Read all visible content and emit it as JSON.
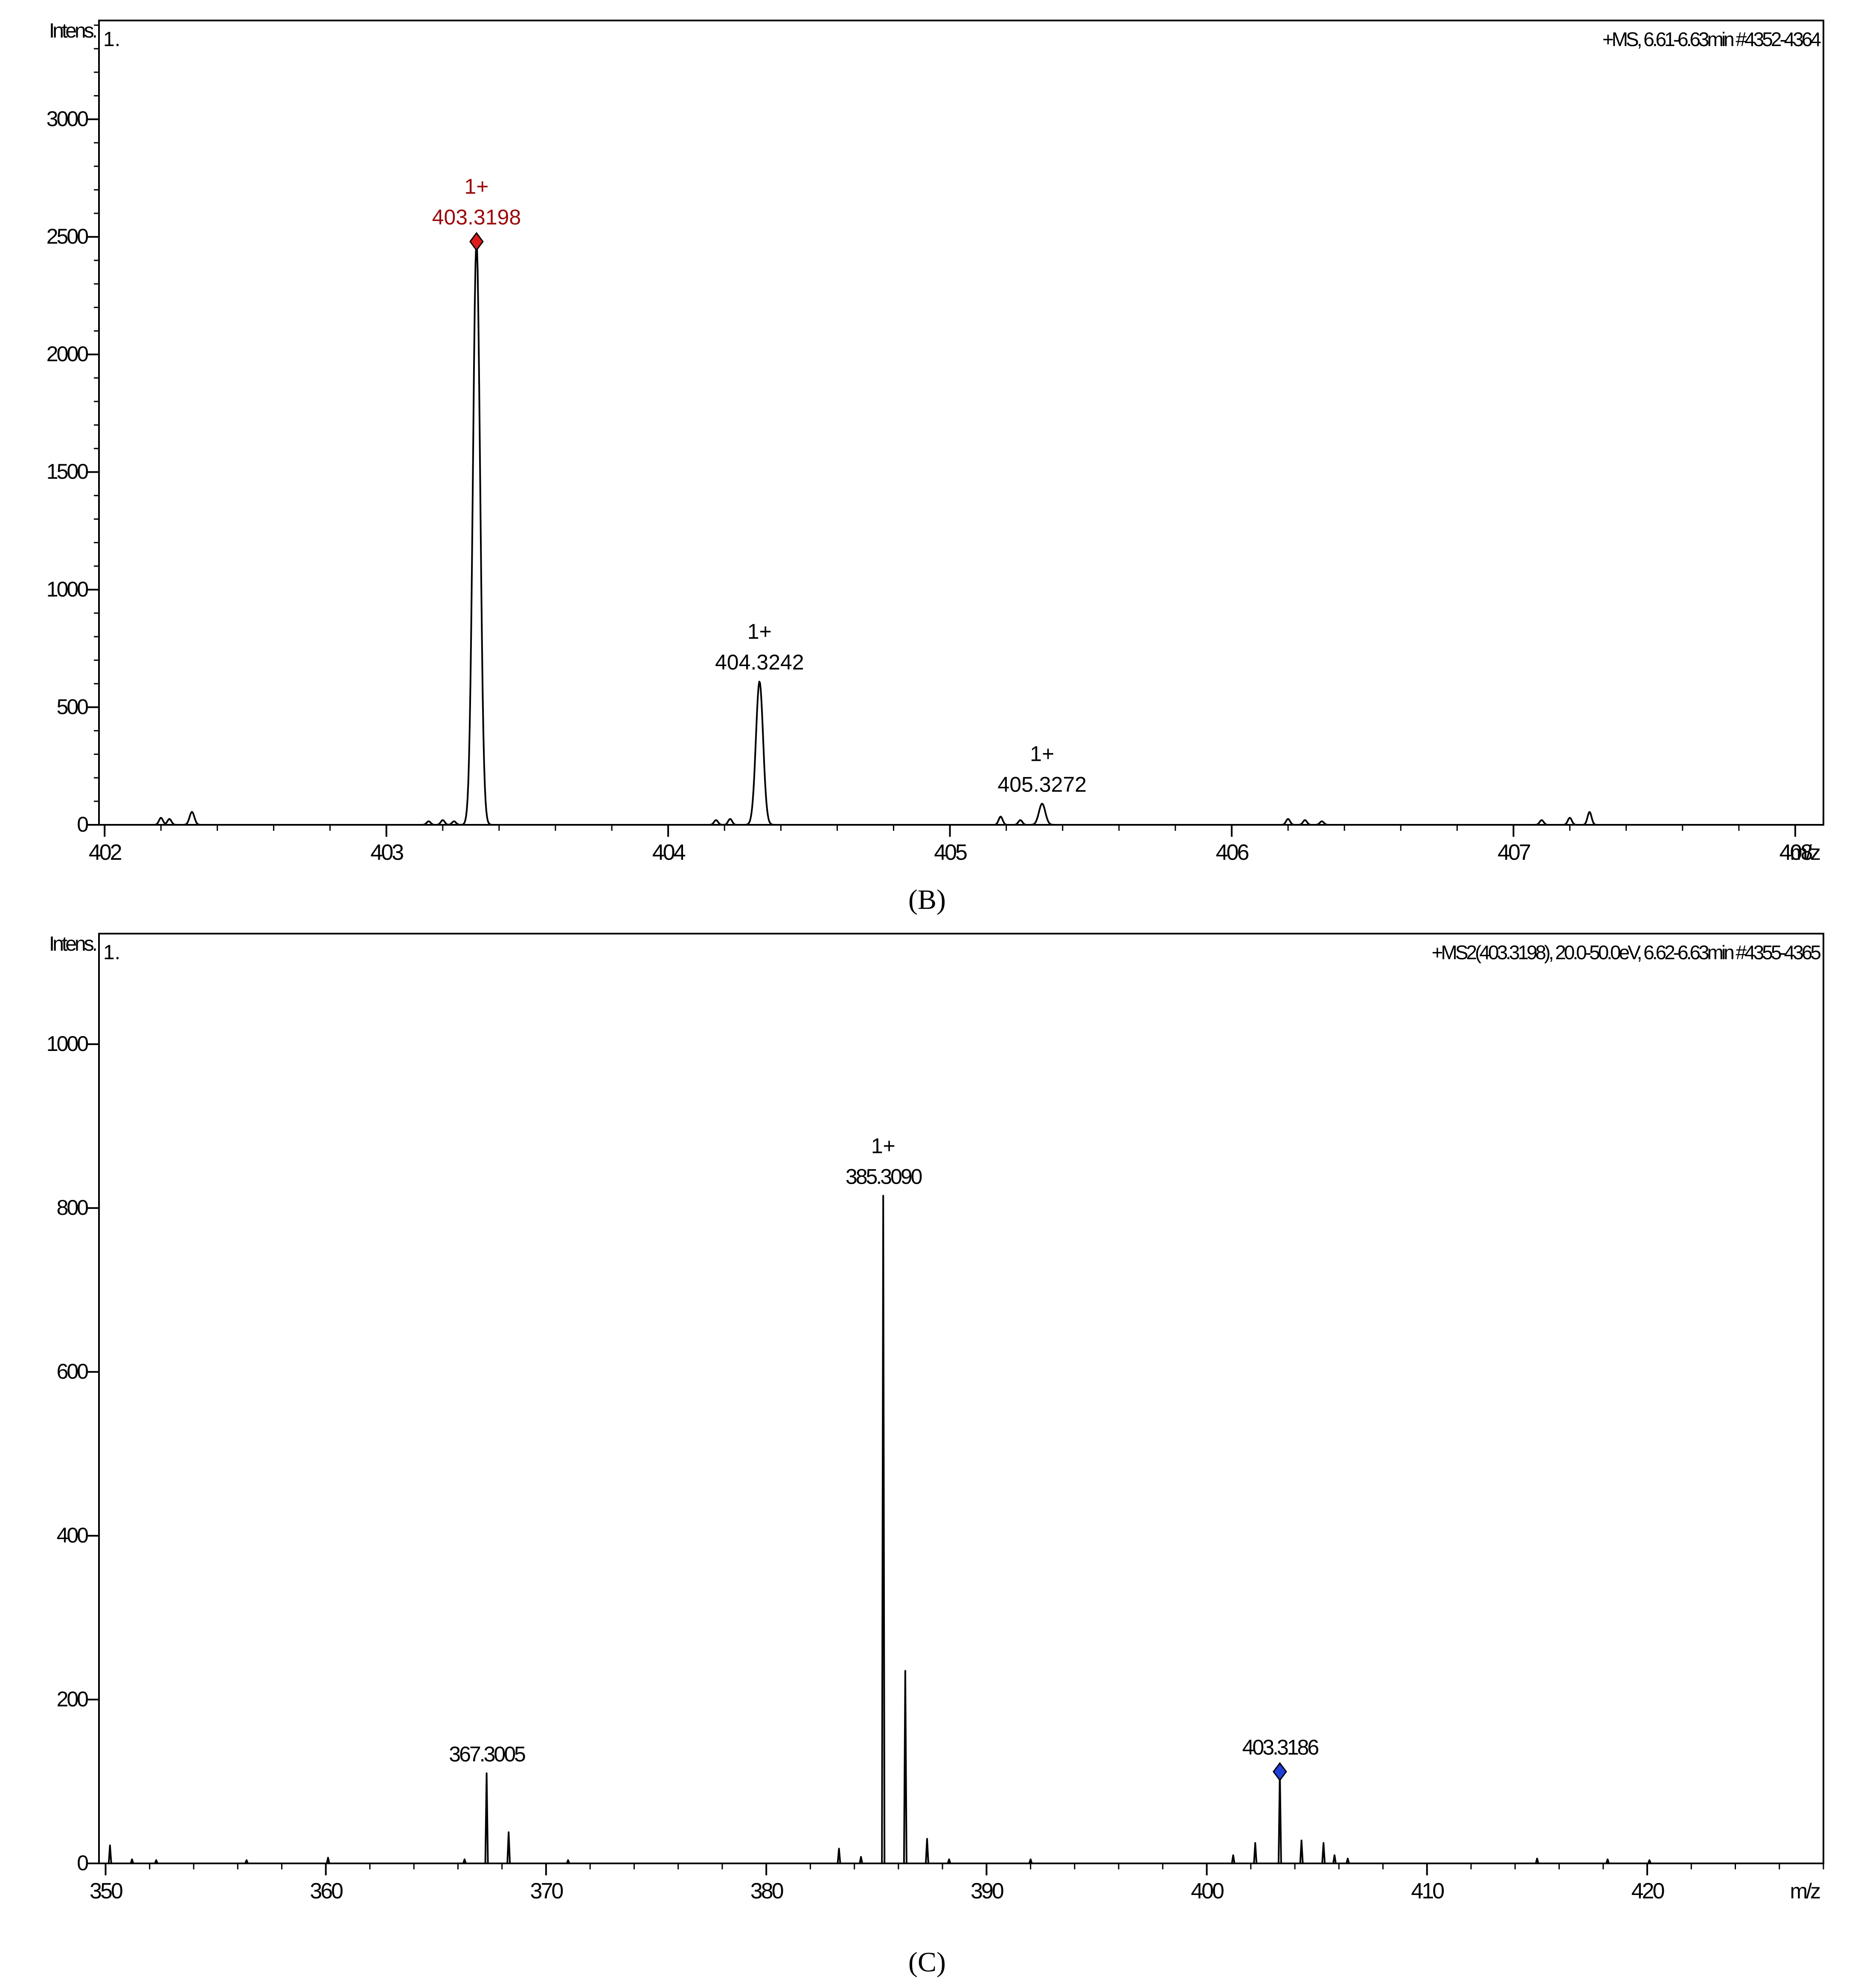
{
  "colors": {
    "line": "#000000",
    "red_marker": "#e01b1b",
    "red_text": "#9b0a0a",
    "blue_marker": "#1f3fd8"
  },
  "chart_data": [
    {
      "id": "B",
      "type": "line",
      "title": "",
      "panel_number": "1.",
      "header_info": "+MS, 6.61-6.63min #4352-4364",
      "ylabel": "Intens.",
      "xunit": "m/z",
      "xlim": [
        401.98,
        408.1
      ],
      "ylim": [
        0,
        3420
      ],
      "xticks": [
        402,
        403,
        404,
        405,
        406,
        407,
        408
      ],
      "xtick_labels": [
        "402",
        "403",
        "404",
        "405",
        "406",
        "407",
        "408"
      ],
      "yticks": [
        0,
        500,
        1000,
        1500,
        2000,
        2500,
        3000
      ],
      "ytick_labels": [
        "0",
        "500",
        "1000",
        "1500",
        "2000",
        "2500",
        "3000"
      ],
      "caption": "(B)",
      "peaks": [
        {
          "x": 403.3198,
          "y": 2480,
          "w": 0.018
        },
        {
          "x": 404.3242,
          "y": 610,
          "w": 0.018
        },
        {
          "x": 405.3272,
          "y": 90,
          "w": 0.016
        },
        {
          "x": 402.2,
          "y": 30,
          "w": 0.01
        },
        {
          "x": 402.23,
          "y": 25,
          "w": 0.01
        },
        {
          "x": 402.31,
          "y": 55,
          "w": 0.012
        },
        {
          "x": 403.15,
          "y": 15,
          "w": 0.01
        },
        {
          "x": 403.2,
          "y": 20,
          "w": 0.01
        },
        {
          "x": 403.24,
          "y": 15,
          "w": 0.01
        },
        {
          "x": 404.17,
          "y": 20,
          "w": 0.01
        },
        {
          "x": 404.22,
          "y": 25,
          "w": 0.01
        },
        {
          "x": 405.18,
          "y": 35,
          "w": 0.01
        },
        {
          "x": 405.25,
          "y": 20,
          "w": 0.01
        },
        {
          "x": 406.2,
          "y": 25,
          "w": 0.01
        },
        {
          "x": 406.26,
          "y": 20,
          "w": 0.01
        },
        {
          "x": 406.32,
          "y": 15,
          "w": 0.01
        },
        {
          "x": 407.1,
          "y": 20,
          "w": 0.01
        },
        {
          "x": 407.2,
          "y": 30,
          "w": 0.01
        },
        {
          "x": 407.27,
          "y": 55,
          "w": 0.01
        }
      ],
      "annotations": [
        {
          "x": 403.3198,
          "y": 2480,
          "charge": "1+",
          "label": "403.3198",
          "marker": "red"
        },
        {
          "x": 404.3242,
          "y": 610,
          "charge": "1+",
          "label": "404.3242",
          "marker": "none"
        },
        {
          "x": 405.3272,
          "y": 90,
          "charge": "1+",
          "label": "405.3272",
          "marker": "none"
        }
      ]
    },
    {
      "id": "C",
      "type": "line",
      "title": "",
      "panel_number": "1.",
      "header_info": "+MS2(403.3198), 20.0-50.0eV, 6.62-6.63min #4355-4365",
      "ylabel": "Intens.",
      "xunit": "m/z",
      "xlim": [
        349.7,
        428.0
      ],
      "ylim": [
        0,
        1135
      ],
      "xticks": [
        350,
        360,
        370,
        380,
        390,
        400,
        410,
        420
      ],
      "xtick_labels": [
        "350",
        "360",
        "370",
        "380",
        "390",
        "400",
        "410",
        "420"
      ],
      "yticks": [
        0,
        200,
        400,
        600,
        800,
        1000
      ],
      "ytick_labels": [
        "0",
        "200",
        "400",
        "600",
        "800",
        "1000"
      ],
      "caption": "(C)",
      "peaks": [
        {
          "x": 350.2,
          "y": 22
        },
        {
          "x": 351.2,
          "y": 5
        },
        {
          "x": 352.3,
          "y": 4
        },
        {
          "x": 356.4,
          "y": 4
        },
        {
          "x": 360.1,
          "y": 7
        },
        {
          "x": 366.3,
          "y": 5
        },
        {
          "x": 367.3005,
          "y": 110
        },
        {
          "x": 368.3,
          "y": 38
        },
        {
          "x": 371.0,
          "y": 4
        },
        {
          "x": 383.3,
          "y": 18
        },
        {
          "x": 384.3,
          "y": 8
        },
        {
          "x": 385.309,
          "y": 815
        },
        {
          "x": 386.31,
          "y": 235
        },
        {
          "x": 387.3,
          "y": 30
        },
        {
          "x": 388.3,
          "y": 5
        },
        {
          "x": 392.0,
          "y": 5
        },
        {
          "x": 401.2,
          "y": 10
        },
        {
          "x": 402.2,
          "y": 25
        },
        {
          "x": 403.3186,
          "y": 112
        },
        {
          "x": 404.3,
          "y": 28
        },
        {
          "x": 405.3,
          "y": 25
        },
        {
          "x": 405.8,
          "y": 10
        },
        {
          "x": 406.4,
          "y": 6
        },
        {
          "x": 415.0,
          "y": 6
        },
        {
          "x": 418.2,
          "y": 5
        },
        {
          "x": 420.1,
          "y": 4
        }
      ],
      "annotations": [
        {
          "x": 385.309,
          "y": 815,
          "charge": "1+",
          "label": "385.3090",
          "marker": "none"
        },
        {
          "x": 367.3005,
          "y": 110,
          "charge": "",
          "label": "367.3005",
          "marker": "none"
        },
        {
          "x": 403.3186,
          "y": 112,
          "charge": "",
          "label": "403.3186",
          "marker": "blue"
        }
      ]
    }
  ]
}
